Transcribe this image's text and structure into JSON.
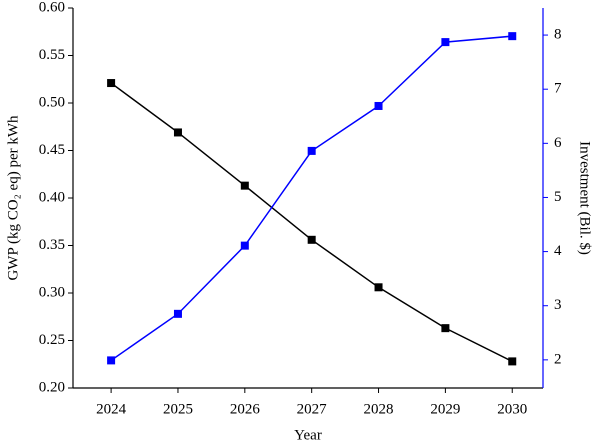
{
  "chart_data": {
    "type": "line",
    "xlabel": "Year",
    "ylabel": "GWP (kg CO₂ eq) per kWh",
    "y2label": "Investment (Bil. $)",
    "x": [
      2024,
      2025,
      2026,
      2027,
      2028,
      2029,
      2030
    ],
    "series": [
      {
        "color": "#000000",
        "values": [
          0.521,
          0.469,
          0.413,
          0.356,
          0.306,
          0.263,
          0.228
        ]
      },
      {
        "color": "#0000ff",
        "axis": "y2",
        "values": [
          1.99,
          2.85,
          4.11,
          5.86,
          6.69,
          7.87,
          7.98
        ]
      }
    ],
    "xlim": [
      2023.43,
      2030.46
    ],
    "xticks": [
      2024,
      2025,
      2026,
      2027,
      2028,
      2029,
      2030
    ],
    "ylim": [
      0.2,
      0.6
    ],
    "yticks": [
      {
        "value": 0.2,
        "label": "0.20"
      },
      0.25,
      {
        "value": 0.3,
        "label": "0.30"
      },
      0.35,
      {
        "value": 0.4,
        "label": "0.40"
      },
      0.45,
      {
        "value": 0.5,
        "label": "0.50"
      },
      0.55,
      {
        "value": 0.6,
        "label": "0.60"
      }
    ],
    "y2lim": [
      1.48,
      8.5
    ],
    "y2ticks": [
      2,
      3,
      4,
      5,
      6,
      7,
      8
    ],
    "y2color": "#0000ff"
  }
}
